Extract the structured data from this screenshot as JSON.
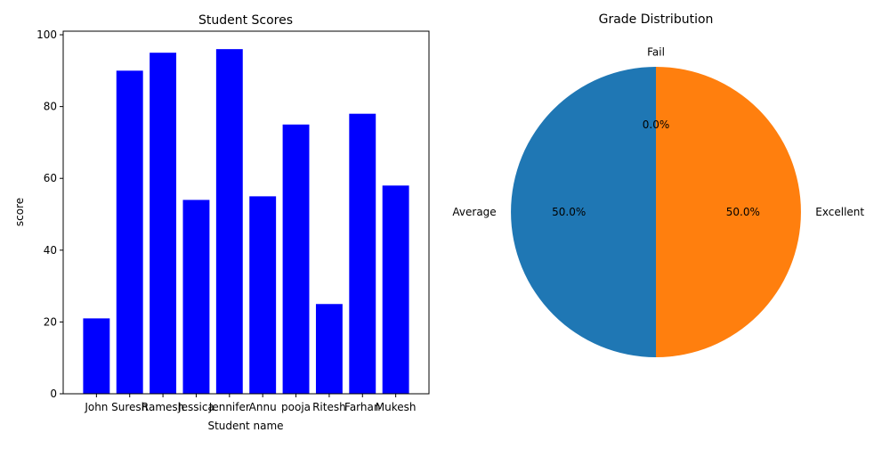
{
  "chart_data": [
    {
      "type": "bar",
      "title": "Student Scores",
      "xlabel": "Student name",
      "ylabel": "score",
      "categories": [
        "John",
        "Suresh",
        "Ramesh",
        "Jessica",
        "Jennifer",
        "Annu",
        "pooja",
        "Ritesh",
        "Farhan",
        "Mukesh"
      ],
      "values": [
        21,
        90,
        95,
        54,
        96,
        55,
        75,
        25,
        78,
        58
      ],
      "ylim": [
        0,
        101
      ],
      "yticks": [
        0,
        20,
        40,
        60,
        80,
        100
      ],
      "bar_color": "#0000ff",
      "grid": false
    },
    {
      "type": "pie",
      "title": "Grade Distribution",
      "labels": [
        "Fail",
        "Average",
        "Excellent"
      ],
      "values": [
        0,
        50,
        50
      ],
      "autopct": [
        "0.0%",
        "50.0%",
        "50.0%"
      ],
      "colors": [
        "#2ca02c",
        "#1f77b4",
        "#ff7f0e"
      ]
    }
  ]
}
